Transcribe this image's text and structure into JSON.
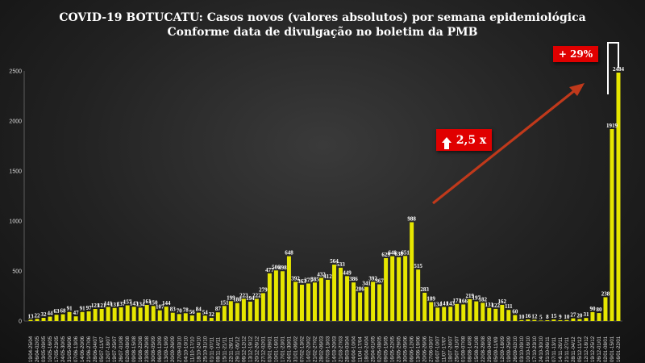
{
  "title_line1": "COVID-19 BOTUCATU: Casos novos (valores absolutos) por semana epidemiológica",
  "title_line2": "Conforme data de divulgação no boletim da PMB",
  "annotations": {
    "growth_badge": "2,5 x",
    "recent_badge": "+ 29%"
  },
  "colors": {
    "bar": "#e6e600",
    "trend_arrow": "#c0391b",
    "badge": "#e00000"
  },
  "chart_data": {
    "type": "bar",
    "title": "COVID-19 BOTUCATU: Casos novos (valores absolutos) por semana epidemiológica",
    "subtitle": "Conforme data de divulgação no boletim da PMB",
    "ylim": [
      0,
      2500
    ],
    "yticks": [
      0,
      500,
      1000,
      1500,
      2000,
      2500
    ],
    "grid": false,
    "categories": [
      "19/04-25/04",
      "26/04-02/05",
      "03/05-09/05",
      "10/05-16/05",
      "17/05-23/05",
      "24/05-30/05",
      "31/05-06/06",
      "07/06-13/06",
      "14/06-20/06",
      "21/06-27/06",
      "28/06-04/07",
      "05/07-11/07",
      "12/07-18/07",
      "19/07-25/07",
      "26/07-01/08",
      "02/08-08/08",
      "09/08-15/08",
      "16/08-22/08",
      "23/08-29/08",
      "30/08-05/09",
      "06/09-12/09",
      "13/09-19/09",
      "20/09-26/09",
      "27/09-03/10",
      "04/10-10/10",
      "11/10-17/10",
      "18/10-24/10",
      "25/10-31/10",
      "01/11-07/11",
      "08/11-14/11",
      "15/11-21/11",
      "22/11-28/11",
      "29/11-05/12",
      "06/12-12/12",
      "13/12-19/12",
      "20/12-26/12",
      "27/12-02/01",
      "03/01-09/01",
      "10/01-16/01",
      "17/01-23/01",
      "24/01-30/01",
      "31/01-06/02",
      "07/02-13/02",
      "14/02-20/02",
      "21/02-27/02",
      "28/02-06/03",
      "07/03-13/03",
      "14/03-20/03",
      "21/03-27/03",
      "28/03-03/04",
      "04/04-10/04",
      "11/04-17/04",
      "18/04-24/04",
      "25/04-01/05",
      "02/05-08/05",
      "09/05-15/05",
      "16/05-22/05",
      "23/05-29/05",
      "30/05-05/06",
      "06/06-12/06",
      "13/06-19/06",
      "20/06-26/06",
      "27/06-03/07",
      "04/07-10/07",
      "11/07-17/07",
      "18/07-24/07",
      "25/07-31/07",
      "01/08-07/08",
      "08/08-14/08",
      "15/08-21/08",
      "22/08-28/08",
      "29/08-04/09",
      "05/09-11/09",
      "12/09-18/09",
      "19/09-25/09",
      "26/09-02/10",
      "03/10-09/10",
      "10/10-16/10",
      "17/10-23/10",
      "24/10-30/10",
      "31/10-06/11",
      "07/11-13/11",
      "14/11-20/11",
      "21/11-27/11",
      "28/11-04/12",
      "05/12-11/12",
      "12/12-18/12",
      "19/12-25/12",
      "26/12-01/01",
      "02/01-08/01",
      "09/01-15/01",
      "16/01-22/01"
    ],
    "values": [
      13,
      22,
      32,
      44,
      63,
      68,
      91,
      47,
      91,
      97,
      121,
      121,
      141,
      131,
      137,
      157,
      143,
      134,
      161,
      150,
      107,
      144,
      83,
      70,
      78,
      56,
      84,
      54,
      32,
      87,
      151,
      199,
      180,
      223,
      194,
      222,
      279,
      477,
      506,
      498,
      648,
      392,
      363,
      375,
      385,
      432,
      412,
      564,
      533,
      449,
      386,
      286,
      341,
      392,
      367,
      629,
      648,
      638,
      651,
      988,
      515,
      283,
      189,
      134,
      141,
      143,
      171,
      166,
      219,
      197,
      182,
      131,
      122,
      162,
      111,
      60,
      10,
      16,
      12,
      5,
      8,
      15,
      9,
      10,
      27,
      20,
      31,
      90,
      80,
      238,
      1919,
      2484
    ]
  }
}
